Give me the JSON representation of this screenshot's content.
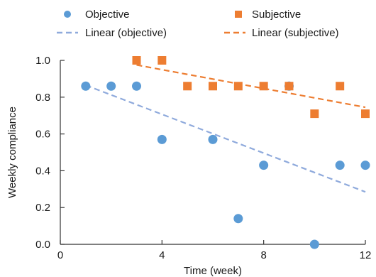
{
  "chart_data": {
    "type": "scatter",
    "xlabel": "Time (week)",
    "ylabel": "Weekly compliance",
    "xlim": [
      0,
      12
    ],
    "ylim": [
      0.0,
      1.0
    ],
    "x_ticks": [
      "0",
      "4",
      "8",
      "12"
    ],
    "y_ticks": [
      "0.0",
      "0.2",
      "0.4",
      "0.6",
      "0.8",
      "1.0"
    ],
    "grid": false,
    "legend_position": "top",
    "series": [
      {
        "name": "Objective",
        "marker": "circle",
        "color": "#5b9bd5",
        "points": [
          {
            "x": 1,
            "y": 0.86
          },
          {
            "x": 2,
            "y": 0.86
          },
          {
            "x": 3,
            "y": 0.86
          },
          {
            "x": 4,
            "y": 0.57
          },
          {
            "x": 6,
            "y": 0.57
          },
          {
            "x": 7,
            "y": 0.14
          },
          {
            "x": 8,
            "y": 0.43
          },
          {
            "x": 9,
            "y": 0.86
          },
          {
            "x": 10,
            "y": 0.0
          },
          {
            "x": 11,
            "y": 0.43
          },
          {
            "x": 12,
            "y": 0.43
          }
        ]
      },
      {
        "name": "Subjective",
        "marker": "square",
        "color": "#ed7d31",
        "points": [
          {
            "x": 3,
            "y": 1.0
          },
          {
            "x": 4,
            "y": 1.0
          },
          {
            "x": 5,
            "y": 0.86
          },
          {
            "x": 6,
            "y": 0.86
          },
          {
            "x": 7,
            "y": 0.86
          },
          {
            "x": 8,
            "y": 0.86
          },
          {
            "x": 9,
            "y": 0.86
          },
          {
            "x": 10,
            "y": 0.71
          },
          {
            "x": 11,
            "y": 0.86
          },
          {
            "x": 12,
            "y": 0.71
          }
        ]
      }
    ],
    "trendlines": [
      {
        "name": "Linear (objective)",
        "color": "#8faadc",
        "x": [
          1,
          12
        ],
        "y": [
          0.865,
          0.285
        ]
      },
      {
        "name": "Linear (subjective)",
        "color": "#ed7d31",
        "x": [
          3,
          12
        ],
        "y": [
          0.975,
          0.745
        ]
      }
    ]
  }
}
